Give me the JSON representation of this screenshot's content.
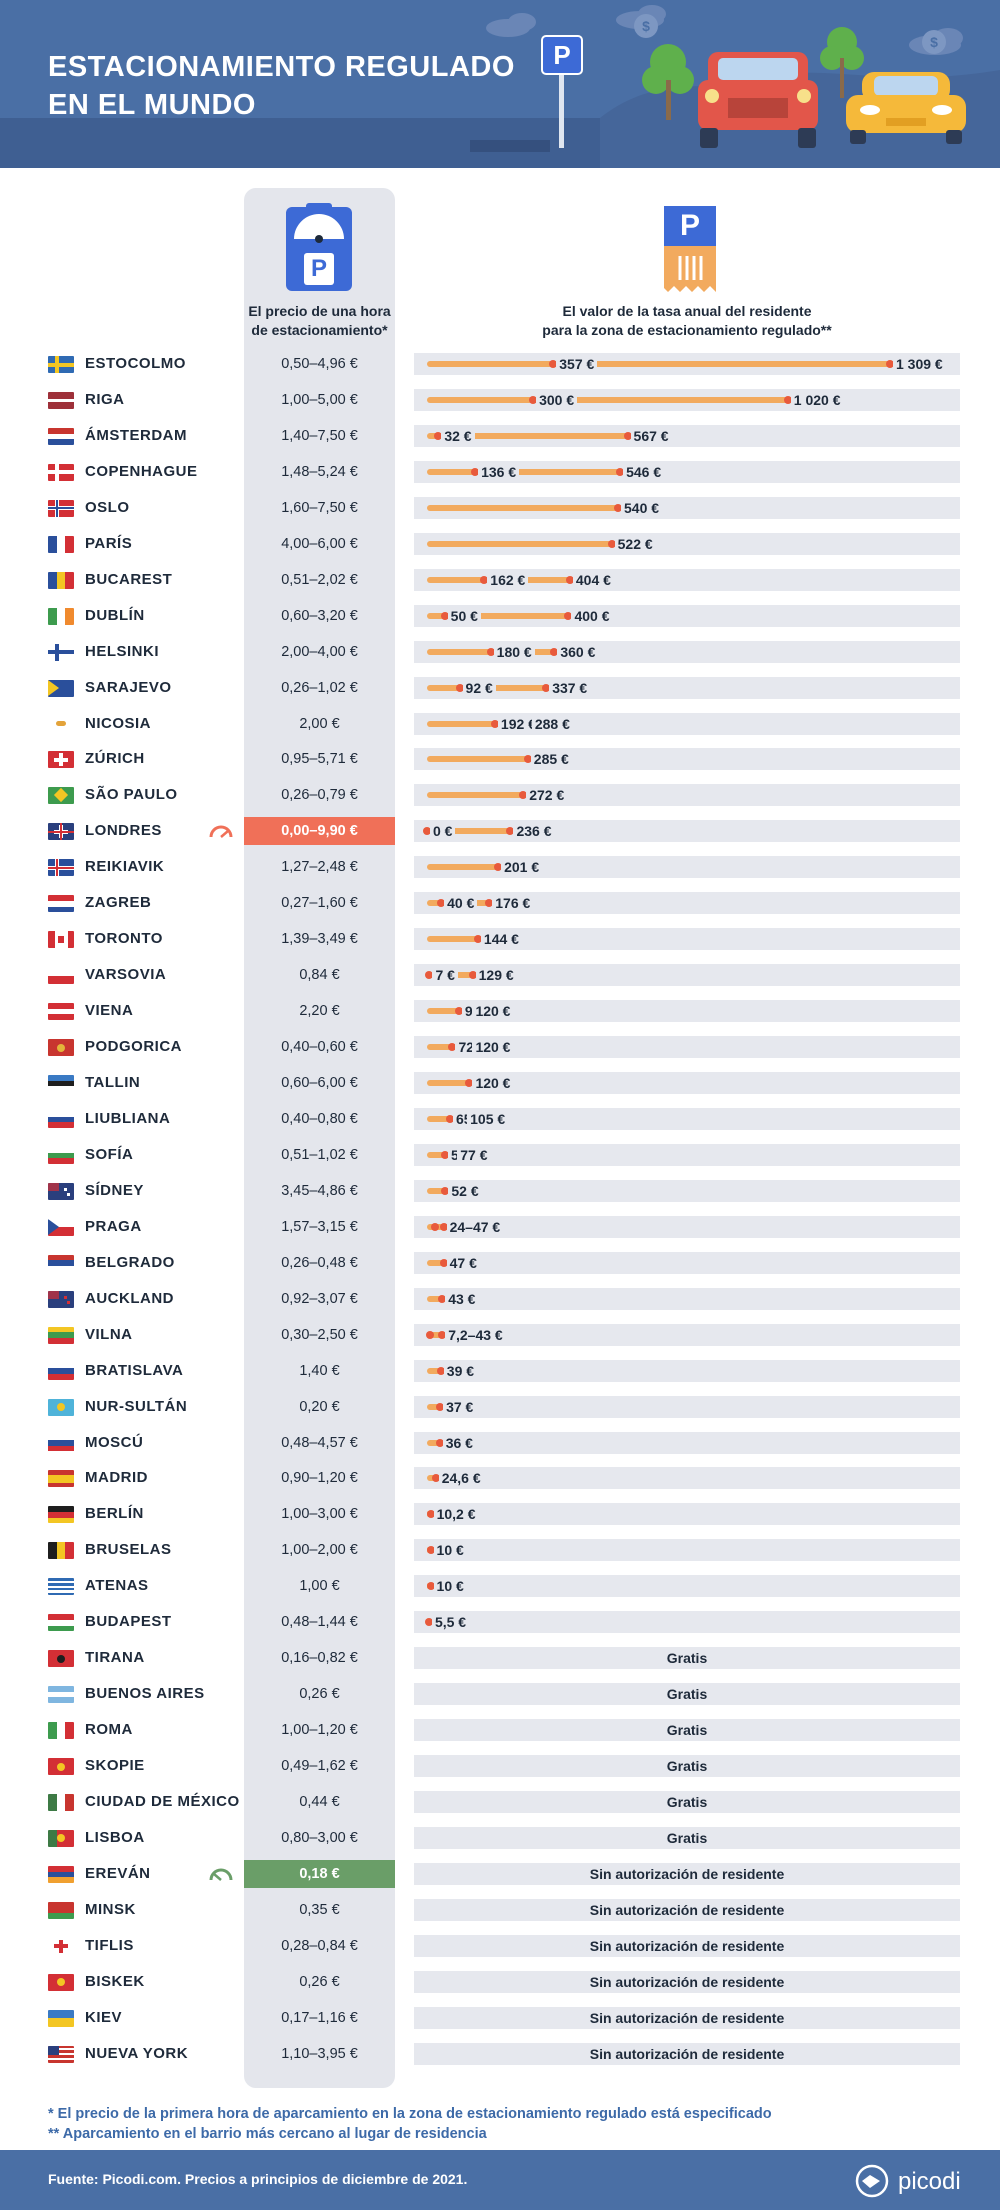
{
  "header": {
    "title_line1": "ESTACIONAMIENTO REGULADO",
    "title_line2": "EN EL MUNDO",
    "sign_letter": "P"
  },
  "columns": {
    "price_head_line1": "El precio de una hora",
    "price_head_line2": "de estacionamiento*",
    "fee_head_line1": "El valor de la tasa anual del residente",
    "fee_head_line2": "para la zona de estacionamiento regulado**",
    "icon_letter": "P"
  },
  "chart_data": {
    "type": "bar",
    "title": "ESTACIONAMIENTO REGULADO EN EL MUNDO",
    "fee_scale_max": 1309,
    "rows": [
      {
        "city": "ESTOCOLMO",
        "price": "0,50–4,96 €",
        "flag": "se",
        "fee": {
          "min": 357,
          "max": 1309,
          "min_label": "357 €",
          "max_label": "1 309 €"
        }
      },
      {
        "city": "RIGA",
        "price": "1,00–5,00 €",
        "flag": "lv",
        "fee": {
          "min": 300,
          "max": 1020,
          "min_label": "300 €",
          "max_label": "1 020 €"
        }
      },
      {
        "city": "ÁMSTERDAM",
        "price": "1,40–7,50 €",
        "flag": "nl",
        "fee": {
          "min": 32,
          "max": 567,
          "min_label": "32 €",
          "max_label": "567 €"
        }
      },
      {
        "city": "COPENHAGUE",
        "price": "1,48–5,24 €",
        "flag": "dk",
        "fee": {
          "min": 136,
          "max": 546,
          "min_label": "136 €",
          "max_label": "546 €"
        }
      },
      {
        "city": "OSLO",
        "price": "1,60–7,50 €",
        "flag": "no",
        "fee": {
          "max": 540,
          "max_label": "540 €"
        }
      },
      {
        "city": "PARÍS",
        "price": "4,00–6,00 €",
        "flag": "fr",
        "fee": {
          "max": 522,
          "max_label": "522 €"
        }
      },
      {
        "city": "BUCAREST",
        "price": "0,51–2,02 €",
        "flag": "ro",
        "fee": {
          "min": 162,
          "max": 404,
          "min_label": "162 €",
          "max_label": "404 €"
        }
      },
      {
        "city": "DUBLÍN",
        "price": "0,60–3,20 €",
        "flag": "ie",
        "fee": {
          "min": 50,
          "max": 400,
          "min_label": "50 €",
          "max_label": "400 €"
        }
      },
      {
        "city": "HELSINKI",
        "price": "2,00–4,00 €",
        "flag": "fi",
        "fee": {
          "min": 180,
          "max": 360,
          "min_label": "180 €",
          "max_label": "360 €"
        }
      },
      {
        "city": "SARAJEVO",
        "price": "0,26–1,02 €",
        "flag": "ba",
        "fee": {
          "min": 92,
          "max": 337,
          "min_label": "92 €",
          "max_label": "337 €"
        }
      },
      {
        "city": "NICOSIA",
        "price": "2,00 €",
        "flag": "cy",
        "fee": {
          "min": 192,
          "max": 288,
          "min_label": "192 €",
          "max_label": "288 €"
        }
      },
      {
        "city": "ZÚRICH",
        "price": "0,95–5,71 €",
        "flag": "ch",
        "fee": {
          "max": 285,
          "max_label": "285 €"
        }
      },
      {
        "city": "SÃO PAULO",
        "price": "0,26–0,79 €",
        "flag": "br",
        "fee": {
          "max": 272,
          "max_label": "272 €"
        }
      },
      {
        "city": "LONDRES",
        "price": "0,00–9,90 €",
        "flag": "gb",
        "highlight": "hi",
        "fee": {
          "min": 0,
          "max": 236,
          "min_label": "0 €",
          "max_label": "236 €"
        }
      },
      {
        "city": "REIKIAVIK",
        "price": "1,27–2,48 €",
        "flag": "is",
        "fee": {
          "max": 201,
          "max_label": "201 €"
        }
      },
      {
        "city": "ZAGREB",
        "price": "0,27–1,60 €",
        "flag": "hr",
        "fee": {
          "min": 40,
          "max": 176,
          "min_label": "40 €",
          "max_label": "176 €"
        }
      },
      {
        "city": "TORONTO",
        "price": "1,39–3,49 €",
        "flag": "ca",
        "fee": {
          "max": 144,
          "max_label": "144 €"
        }
      },
      {
        "city": "VARSOVIA",
        "price": "0,84 €",
        "flag": "pl",
        "fee": {
          "min": 7,
          "max": 129,
          "min_label": "7 €",
          "max_label": "129 €"
        }
      },
      {
        "city": "VIENA",
        "price": "2,20 €",
        "flag": "at",
        "fee": {
          "min": 90,
          "max": 120,
          "min_label": "90 €",
          "max_label": "120 €"
        }
      },
      {
        "city": "PODGORICA",
        "price": "0,40–0,60 €",
        "flag": "me",
        "fee": {
          "min": 72,
          "max": 120,
          "min_label": "72 €",
          "max_label": "120 €"
        }
      },
      {
        "city": "TALLIN",
        "price": "0,60–6,00 €",
        "flag": "ee",
        "fee": {
          "max": 120,
          "max_label": "120 €"
        }
      },
      {
        "city": "LIUBLIANA",
        "price": "0,40–0,80 €",
        "flag": "si",
        "fee": {
          "min": 65,
          "max": 105,
          "min_label": "65 €",
          "max_label": "105 €"
        }
      },
      {
        "city": "SOFÍA",
        "price": "0,51–1,02 €",
        "flag": "bg",
        "fee": {
          "min": 51,
          "max": 77,
          "min_label": "51 €",
          "max_label": "77 €"
        }
      },
      {
        "city": "SÍDNEY",
        "price": "3,45–4,86 €",
        "flag": "au",
        "fee": {
          "max": 52,
          "max_label": "52 €"
        }
      },
      {
        "city": "PRAGA",
        "price": "1,57–3,15 €",
        "flag": "cz",
        "fee": {
          "min": 24,
          "max": 47,
          "range_label": "24–47 €"
        }
      },
      {
        "city": "BELGRADO",
        "price": "0,26–0,48 €",
        "flag": "rs",
        "fee": {
          "max": 47,
          "max_label": "47 €"
        }
      },
      {
        "city": "AUCKLAND",
        "price": "0,92–3,07 €",
        "flag": "nz",
        "fee": {
          "max": 43,
          "max_label": "43 €"
        }
      },
      {
        "city": "VILNA",
        "price": "0,30–2,50 €",
        "flag": "lt",
        "fee": {
          "min": 7.2,
          "max": 43,
          "range_label": "7,2–43 €"
        }
      },
      {
        "city": "BRATISLAVA",
        "price": "1,40 €",
        "flag": "sk",
        "fee": {
          "max": 39,
          "max_label": "39 €"
        }
      },
      {
        "city": "NUR-SULTÁN",
        "price": "0,20 €",
        "flag": "kz",
        "fee": {
          "max": 37,
          "max_label": "37 €"
        }
      },
      {
        "city": "MOSCÚ",
        "price": "0,48–4,57 €",
        "flag": "ru",
        "fee": {
          "max": 36,
          "max_label": "36 €"
        }
      },
      {
        "city": "MADRID",
        "price": "0,90–1,20 €",
        "flag": "es",
        "fee": {
          "max": 24.6,
          "max_label": "24,6 €"
        }
      },
      {
        "city": "BERLÍN",
        "price": "1,00–3,00 €",
        "flag": "de",
        "fee": {
          "max": 10.2,
          "max_label": "10,2 €"
        }
      },
      {
        "city": "BRUSELAS",
        "price": "1,00–2,00 €",
        "flag": "be",
        "fee": {
          "max": 10,
          "max_label": "10 €"
        }
      },
      {
        "city": "ATENAS",
        "price": "1,00 €",
        "flag": "gr",
        "fee": {
          "max": 10,
          "max_label": "10 €"
        }
      },
      {
        "city": "BUDAPEST",
        "price": "0,48–1,44 €",
        "flag": "hu",
        "fee": {
          "max": 5.5,
          "max_label": "5,5 €"
        }
      },
      {
        "city": "TIRANA",
        "price": "0,16–0,82 €",
        "flag": "al",
        "fee": {
          "text": "Gratis"
        }
      },
      {
        "city": "BUENOS AIRES",
        "price": "0,26 €",
        "flag": "ar",
        "fee": {
          "text": "Gratis"
        }
      },
      {
        "city": "ROMA",
        "price": "1,00–1,20 €",
        "flag": "it",
        "fee": {
          "text": "Gratis"
        }
      },
      {
        "city": "SKOPIE",
        "price": "0,49–1,62 €",
        "flag": "mk",
        "fee": {
          "text": "Gratis"
        }
      },
      {
        "city": "CIUDAD DE MÉXICO",
        "price": "0,44 €",
        "flag": "mx",
        "fee": {
          "text": "Gratis"
        }
      },
      {
        "city": "LISBOA",
        "price": "0,80–3,00 €",
        "flag": "pt",
        "fee": {
          "text": "Gratis"
        }
      },
      {
        "city": "EREVÁN",
        "price": "0,18 €",
        "flag": "am",
        "highlight": "lo",
        "fee": {
          "text": "Sin autorización de residente"
        }
      },
      {
        "city": "MINSK",
        "price": "0,35 €",
        "flag": "by",
        "fee": {
          "text": "Sin autorización de residente"
        }
      },
      {
        "city": "TIFLIS",
        "price": "0,28–0,84 €",
        "flag": "ge",
        "fee": {
          "text": "Sin autorización de residente"
        }
      },
      {
        "city": "BISKEK",
        "price": "0,26 €",
        "flag": "kg",
        "fee": {
          "text": "Sin autorización de residente"
        }
      },
      {
        "city": "KIEV",
        "price": "0,17–1,16 €",
        "flag": "ua",
        "fee": {
          "text": "Sin autorización de residente"
        }
      },
      {
        "city": "NUEVA YORK",
        "price": "1,10–3,95 €",
        "flag": "us",
        "fee": {
          "text": "Sin autorización de residente"
        }
      }
    ]
  },
  "notes": {
    "note1": "* El precio de la primera hora de aparcamiento en la zona de estacionamiento regulado está especificado",
    "note2": "** Aparcamiento en el barrio más cercano al lugar de residencia"
  },
  "footer": {
    "source": "Fuente: Picodi.com. Precios a principios de diciembre de 2021.",
    "logo_text": "picodi"
  },
  "colors": {
    "header_bg": "#4a6fa5",
    "bar": "#f2aa5e",
    "dot": "#e85a3c",
    "highlight_high": "#f07058",
    "highlight_low": "#6a9e68",
    "track": "#e6e8ee"
  }
}
